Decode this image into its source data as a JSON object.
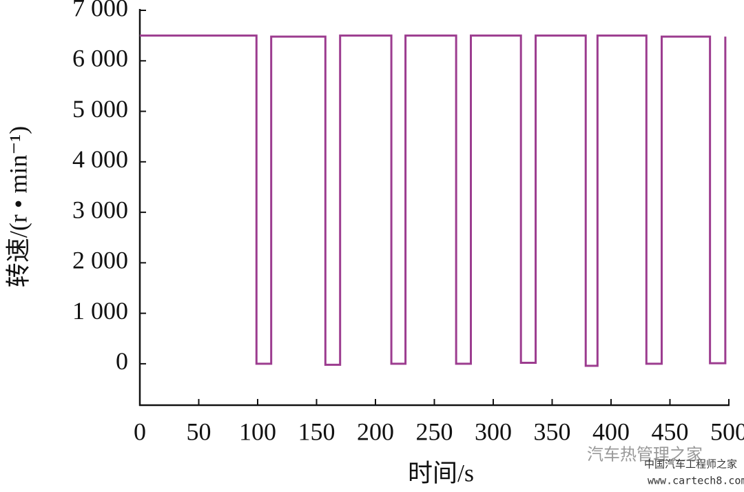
{
  "chart_data": {
    "type": "line",
    "xlabel": "时间/s",
    "ylabel": "转速/(r • min⁻¹)",
    "x": [
      0,
      99,
      99,
      111.5,
      111.5,
      157.5,
      157.5,
      170,
      170,
      213.5,
      213.5,
      225.5,
      225.5,
      268.5,
      268.5,
      281,
      281,
      323.5,
      323.5,
      336,
      336,
      378.5,
      378.5,
      388.5,
      388.5,
      430,
      430,
      443,
      443,
      484,
      484,
      497,
      497
    ],
    "series": [
      {
        "color": "#9c3c8f",
        "values": [
          6500,
          6500,
          0,
          0,
          6480,
          6480,
          -20,
          -20,
          6500,
          6500,
          0,
          0,
          6500,
          6500,
          0,
          0,
          6500,
          6500,
          20,
          20,
          6500,
          6500,
          -40,
          -40,
          6500,
          6500,
          0,
          0,
          6480,
          6480,
          10,
          10,
          6480
        ]
      }
    ],
    "xlim": [
      0,
      500
    ],
    "xticks": [
      0,
      50,
      100,
      150,
      200,
      250,
      300,
      350,
      400,
      450,
      500
    ],
    "ylim": [
      -820,
      7000
    ],
    "yticks": [
      0,
      {
        "value": 1000,
        "label": "1 000"
      },
      {
        "value": 2000,
        "label": "2 000"
      },
      {
        "value": 3000,
        "label": "3 000"
      },
      {
        "value": 4000,
        "label": "4 000"
      },
      {
        "value": 5000,
        "label": "5 000"
      },
      {
        "value": 6000,
        "label": "6 000"
      },
      {
        "value": 7000,
        "label": "7 000"
      }
    ],
    "grid": false,
    "annotations": [
      "汽车热管理之家",
      "中国汽车工程师之家",
      "www.cartech8.com"
    ]
  }
}
